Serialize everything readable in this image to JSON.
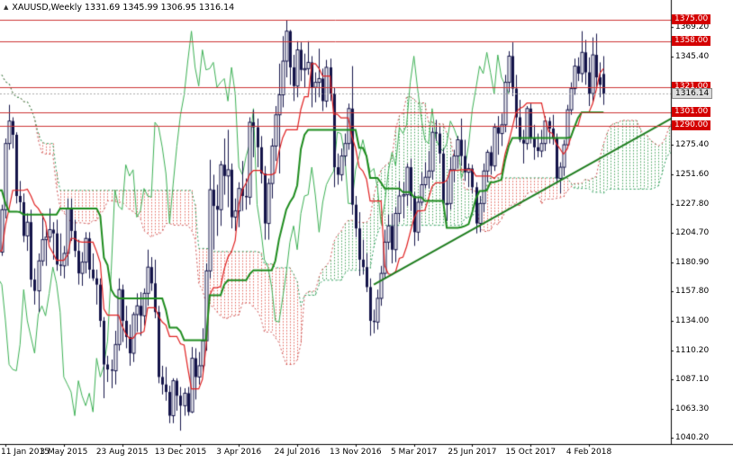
{
  "header": {
    "title_text": "XAUUSD,Weekly 1331.69 1345.99 1306.95 1316.14"
  },
  "chart_data": {
    "type": "candlestick",
    "symbol": "XAUUSD",
    "timeframe": "Weekly",
    "last_candle_ohlc": {
      "open": 1331.69,
      "high": 1345.99,
      "low": 1306.95,
      "close": 1316.14
    },
    "current_price": "1316.14",
    "indicators": [
      "Ichimoku Kinko Hyo (9,26,52) with hatched cloud",
      "horizontal price levels",
      "ascending trendline"
    ],
    "y_range": [
      1040.2,
      1378.0
    ],
    "y_axis_ticks": [
      "1369.20",
      "1345.40",
      "1275.40",
      "1251.60",
      "1227.80",
      "1204.70",
      "1180.90",
      "1157.80",
      "1134.00",
      "1110.20",
      "1087.10",
      "1063.30",
      "1040.20"
    ],
    "level_lines": [
      "1375.00",
      "1358.00",
      "1321.00",
      "1301.00",
      "1290.00"
    ],
    "x_axis_labels": [
      {
        "text": "11 Jan 2015",
        "week": 27
      },
      {
        "text": "3 May 2015",
        "week": 43
      },
      {
        "text": "23 Aug 2015",
        "week": 59
      },
      {
        "text": "13 Dec 2015",
        "week": 75
      },
      {
        "text": "3 Apr 2016",
        "week": 91
      },
      {
        "text": "24 Jul 2016",
        "week": 107
      },
      {
        "text": "13 Nov 2016",
        "week": 123
      },
      {
        "text": "5 Mar 2017",
        "week": 139
      },
      {
        "text": "25 Jun 2017",
        "week": 155
      },
      {
        "text": "15 Oct 2017",
        "week": 171
      },
      {
        "text": "4 Feb 2018",
        "week": 187
      }
    ],
    "weeks_offscreen_left": 26,
    "senkou_shift": 26,
    "trendline": {
      "from_week": 128,
      "from_price": 1163,
      "to_week": 212,
      "to_price": 1300
    },
    "colors": {
      "background": "#ffffff",
      "candle": "#14144a",
      "tenkan": "#e02020",
      "kijun": "#1e8c1e",
      "chikou": "#3cb054",
      "senkou_a": "#cc5555",
      "senkou_b": "#2e9e5e",
      "cloud_up": "#46a35c",
      "cloud_down": "#e2645a",
      "level_line": "#cc3333",
      "badge_bg": "#d40000",
      "trendline": "#1e7d1e"
    },
    "candles": [
      [
        1320,
        1345,
        1317,
        1339
      ],
      [
        1339,
        1346,
        1305,
        1311
      ],
      [
        1311,
        1325,
        1302,
        1307
      ],
      [
        1307,
        1312,
        1287,
        1294
      ],
      [
        1294,
        1300,
        1280,
        1293
      ],
      [
        1293,
        1312,
        1286,
        1308
      ],
      [
        1308,
        1311,
        1273,
        1287
      ],
      [
        1287,
        1297,
        1276,
        1282
      ],
      [
        1282,
        1290,
        1262,
        1269
      ],
      [
        1269,
        1274,
        1246,
        1255
      ],
      [
        1255,
        1260,
        1222,
        1228
      ],
      [
        1228,
        1239,
        1208,
        1217
      ],
      [
        1217,
        1232,
        1206,
        1223
      ],
      [
        1223,
        1238,
        1216,
        1231
      ],
      [
        1231,
        1242,
        1222,
        1238
      ],
      [
        1238,
        1240,
        1160,
        1164
      ],
      [
        1164,
        1180,
        1131,
        1178
      ],
      [
        1178,
        1185,
        1146,
        1173
      ],
      [
        1173,
        1194,
        1166,
        1189
      ],
      [
        1189,
        1205,
        1175,
        1198
      ],
      [
        1198,
        1200,
        1141,
        1175
      ],
      [
        1175,
        1239,
        1170,
        1222
      ],
      [
        1222,
        1228,
        1185,
        1196
      ],
      [
        1196,
        1210,
        1188,
        1195
      ],
      [
        1195,
        1202,
        1170,
        1180
      ],
      [
        1180,
        1195,
        1172,
        1189
      ],
      [
        1189,
        1227,
        1186,
        1223
      ],
      [
        1223,
        1280,
        1216,
        1276
      ],
      [
        1276,
        1307,
        1271,
        1294
      ],
      [
        1294,
        1297,
        1272,
        1283
      ],
      [
        1283,
        1285,
        1228,
        1234
      ],
      [
        1234,
        1246,
        1221,
        1229
      ],
      [
        1229,
        1236,
        1197,
        1202
      ],
      [
        1202,
        1220,
        1190,
        1213
      ],
      [
        1213,
        1223,
        1161,
        1167
      ],
      [
        1167,
        1176,
        1147,
        1158
      ],
      [
        1158,
        1188,
        1141,
        1182
      ],
      [
        1182,
        1220,
        1178,
        1199
      ],
      [
        1199,
        1210,
        1178,
        1201
      ],
      [
        1201,
        1224,
        1197,
        1207
      ],
      [
        1207,
        1213,
        1183,
        1204
      ],
      [
        1204,
        1215,
        1174,
        1179
      ],
      [
        1179,
        1204,
        1170,
        1178
      ],
      [
        1178,
        1194,
        1168,
        1188
      ],
      [
        1188,
        1232,
        1178,
        1224
      ],
      [
        1224,
        1232,
        1198,
        1206
      ],
      [
        1206,
        1215,
        1185,
        1190
      ],
      [
        1190,
        1199,
        1163,
        1172
      ],
      [
        1172,
        1189,
        1162,
        1181
      ],
      [
        1181,
        1205,
        1172,
        1200
      ],
      [
        1200,
        1205,
        1168,
        1175
      ],
      [
        1175,
        1188,
        1166,
        1168
      ],
      [
        1168,
        1175,
        1147,
        1163
      ],
      [
        1163,
        1168,
        1129,
        1134
      ],
      [
        1134,
        1137,
        1072,
        1099
      ],
      [
        1099,
        1106,
        1085,
        1095
      ],
      [
        1095,
        1103,
        1080,
        1094
      ],
      [
        1094,
        1126,
        1083,
        1115
      ],
      [
        1115,
        1168,
        1110,
        1159
      ],
      [
        1159,
        1163,
        1117,
        1134
      ],
      [
        1134,
        1146,
        1112,
        1121
      ],
      [
        1121,
        1131,
        1098,
        1108
      ],
      [
        1108,
        1141,
        1101,
        1139
      ],
      [
        1139,
        1156,
        1125,
        1146
      ],
      [
        1146,
        1157,
        1122,
        1138
      ],
      [
        1138,
        1160,
        1130,
        1156
      ],
      [
        1156,
        1191,
        1146,
        1177
      ],
      [
        1177,
        1185,
        1158,
        1164
      ],
      [
        1164,
        1183,
        1136,
        1141
      ],
      [
        1141,
        1146,
        1084,
        1089
      ],
      [
        1089,
        1098,
        1075,
        1083
      ],
      [
        1083,
        1097,
        1070,
        1077
      ],
      [
        1077,
        1082,
        1052,
        1058
      ],
      [
        1058,
        1088,
        1052,
        1086
      ],
      [
        1086,
        1088,
        1062,
        1074
      ],
      [
        1074,
        1081,
        1046,
        1066
      ],
      [
        1066,
        1080,
        1058,
        1076
      ],
      [
        1076,
        1081,
        1058,
        1061
      ],
      [
        1061,
        1113,
        1060,
        1104
      ],
      [
        1104,
        1112,
        1071,
        1089
      ],
      [
        1089,
        1109,
        1083,
        1098
      ],
      [
        1098,
        1128,
        1092,
        1118
      ],
      [
        1118,
        1180,
        1110,
        1174
      ],
      [
        1174,
        1263,
        1168,
        1239
      ],
      [
        1239,
        1251,
        1191,
        1226
      ],
      [
        1226,
        1243,
        1202,
        1223
      ],
      [
        1223,
        1262,
        1210,
        1259
      ],
      [
        1259,
        1280,
        1235,
        1250
      ],
      [
        1250,
        1287,
        1225,
        1255
      ],
      [
        1255,
        1260,
        1208,
        1217
      ],
      [
        1217,
        1232,
        1206,
        1222
      ],
      [
        1222,
        1245,
        1209,
        1240
      ],
      [
        1240,
        1262,
        1222,
        1234
      ],
      [
        1234,
        1248,
        1223,
        1233
      ],
      [
        1233,
        1297,
        1227,
        1293
      ],
      [
        1293,
        1303,
        1265,
        1289
      ],
      [
        1289,
        1296,
        1257,
        1273
      ],
      [
        1273,
        1282,
        1244,
        1252
      ],
      [
        1252,
        1258,
        1199,
        1212
      ],
      [
        1212,
        1248,
        1199,
        1244
      ],
      [
        1244,
        1280,
        1232,
        1274
      ],
      [
        1274,
        1306,
        1262,
        1299
      ],
      [
        1299,
        1340,
        1252,
        1315
      ],
      [
        1315,
        1362,
        1305,
        1342
      ],
      [
        1342,
        1375,
        1329,
        1366
      ],
      [
        1366,
        1367,
        1323,
        1337
      ],
      [
        1337,
        1347,
        1310,
        1322
      ],
      [
        1322,
        1358,
        1313,
        1351
      ],
      [
        1351,
        1357,
        1326,
        1335
      ],
      [
        1335,
        1348,
        1321,
        1336
      ],
      [
        1336,
        1358,
        1331,
        1341
      ],
      [
        1341,
        1346,
        1305,
        1321
      ],
      [
        1321,
        1333,
        1309,
        1325
      ],
      [
        1325,
        1352,
        1313,
        1328
      ],
      [
        1328,
        1336,
        1302,
        1310
      ],
      [
        1310,
        1343,
        1305,
        1337
      ],
      [
        1337,
        1344,
        1310,
        1316
      ],
      [
        1316,
        1321,
        1241,
        1257
      ],
      [
        1257,
        1268,
        1243,
        1251
      ],
      [
        1251,
        1272,
        1246,
        1266
      ],
      [
        1266,
        1284,
        1258,
        1276
      ],
      [
        1276,
        1308,
        1271,
        1304
      ],
      [
        1304,
        1338,
        1219,
        1227
      ],
      [
        1227,
        1234,
        1201,
        1208
      ],
      [
        1208,
        1221,
        1170,
        1183
      ],
      [
        1183,
        1199,
        1171,
        1177
      ],
      [
        1177,
        1188,
        1157,
        1161
      ],
      [
        1161,
        1168,
        1122,
        1134
      ],
      [
        1134,
        1143,
        1124,
        1133
      ],
      [
        1133,
        1159,
        1127,
        1152
      ],
      [
        1152,
        1178,
        1146,
        1172
      ],
      [
        1172,
        1207,
        1168,
        1197
      ],
      [
        1197,
        1219,
        1191,
        1210
      ],
      [
        1210,
        1220,
        1180,
        1191
      ],
      [
        1191,
        1225,
        1181,
        1220
      ],
      [
        1220,
        1246,
        1213,
        1234
      ],
      [
        1234,
        1245,
        1216,
        1235
      ],
      [
        1235,
        1260,
        1226,
        1257
      ],
      [
        1257,
        1264,
        1222,
        1234
      ],
      [
        1234,
        1237,
        1194,
        1205
      ],
      [
        1205,
        1233,
        1198,
        1229
      ],
      [
        1229,
        1253,
        1226,
        1243
      ],
      [
        1243,
        1261,
        1240,
        1249
      ],
      [
        1249,
        1270,
        1240,
        1254
      ],
      [
        1254,
        1289,
        1247,
        1285
      ],
      [
        1285,
        1295,
        1278,
        1284
      ],
      [
        1284,
        1290,
        1260,
        1268
      ],
      [
        1268,
        1272,
        1224,
        1228
      ],
      [
        1228,
        1248,
        1214,
        1228
      ],
      [
        1228,
        1265,
        1223,
        1255
      ],
      [
        1255,
        1271,
        1245,
        1266
      ],
      [
        1266,
        1282,
        1256,
        1279
      ],
      [
        1279,
        1296,
        1258,
        1266
      ],
      [
        1266,
        1279,
        1246,
        1253
      ],
      [
        1253,
        1260,
        1241,
        1256
      ],
      [
        1256,
        1259,
        1236,
        1241
      ],
      [
        1241,
        1245,
        1204,
        1212
      ],
      [
        1212,
        1234,
        1205,
        1228
      ],
      [
        1228,
        1260,
        1221,
        1254
      ],
      [
        1254,
        1271,
        1245,
        1269
      ],
      [
        1269,
        1274,
        1251,
        1258
      ],
      [
        1258,
        1292,
        1254,
        1289
      ],
      [
        1289,
        1298,
        1267,
        1284
      ],
      [
        1284,
        1300,
        1274,
        1291
      ],
      [
        1291,
        1331,
        1285,
        1325
      ],
      [
        1325,
        1350,
        1317,
        1346
      ],
      [
        1346,
        1357,
        1314,
        1320
      ],
      [
        1320,
        1331,
        1288,
        1297
      ],
      [
        1297,
        1311,
        1277,
        1279
      ],
      [
        1279,
        1287,
        1260,
        1276
      ],
      [
        1276,
        1306,
        1271,
        1304
      ],
      [
        1304,
        1308,
        1276,
        1280
      ],
      [
        1280,
        1291,
        1263,
        1273
      ],
      [
        1273,
        1284,
        1265,
        1270
      ],
      [
        1270,
        1287,
        1265,
        1276
      ],
      [
        1276,
        1298,
        1270,
        1294
      ],
      [
        1294,
        1297,
        1276,
        1288
      ],
      [
        1288,
        1299,
        1275,
        1280
      ],
      [
        1280,
        1284,
        1244,
        1248
      ],
      [
        1248,
        1261,
        1236,
        1257
      ],
      [
        1257,
        1279,
        1250,
        1275
      ],
      [
        1275,
        1307,
        1272,
        1303
      ],
      [
        1303,
        1325,
        1299,
        1320
      ],
      [
        1320,
        1344,
        1315,
        1338
      ],
      [
        1338,
        1345,
        1326,
        1332
      ],
      [
        1332,
        1366,
        1325,
        1349
      ],
      [
        1349,
        1359,
        1323,
        1333
      ],
      [
        1333,
        1345,
        1306,
        1316
      ],
      [
        1316,
        1361,
        1309,
        1347
      ],
      [
        1347,
        1364,
        1320,
        1329
      ],
      [
        1329,
        1341,
        1313,
        1323
      ],
      [
        1331.69,
        1345.99,
        1306.95,
        1316.14
      ]
    ]
  }
}
